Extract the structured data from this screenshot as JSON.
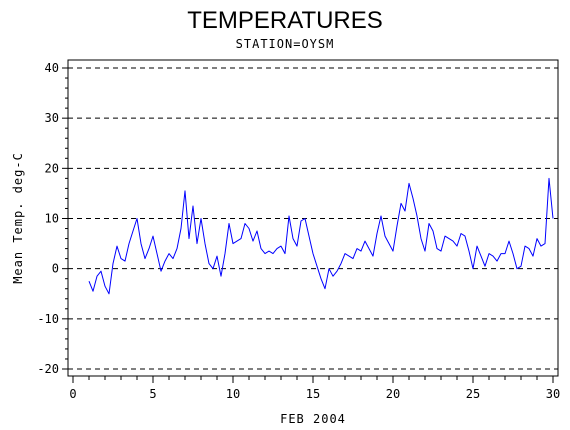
{
  "chart_data": {
    "type": "line",
    "title": "TEMPERATURES",
    "subtitle": "STATION=OYSM",
    "xlabel": "FEB 2004",
    "ylabel": "Mean Temp. deg-C",
    "xlim": [
      0,
      30
    ],
    "ylim": [
      -20,
      40
    ],
    "xticks": [
      "0",
      "5",
      "10",
      "15",
      "20",
      "25",
      "30"
    ],
    "yticks": [
      "-20",
      "-10",
      "0",
      "10",
      "20",
      "30",
      "40"
    ],
    "grid": "horizontal dashed",
    "line_color": "#0000ff",
    "series": [
      {
        "x": [
          1.0,
          1.25,
          1.5,
          1.75,
          2.0,
          2.25,
          2.5,
          2.75,
          3.0,
          3.25,
          3.5,
          3.75,
          4.0,
          4.25,
          4.5,
          4.75,
          5.0,
          5.25,
          5.5,
          5.75,
          6.0,
          6.25,
          6.5,
          6.75,
          7.0,
          7.25,
          7.5,
          7.75,
          8.0,
          8.25,
          8.5,
          8.75,
          9.0,
          9.25,
          9.5,
          9.75,
          10.0,
          10.25,
          10.5,
          10.75,
          11.0,
          11.25,
          11.5,
          11.75,
          12.0,
          12.25,
          12.5,
          12.75,
          13.0,
          13.25,
          13.5,
          13.75,
          14.0,
          14.25,
          14.5,
          14.75,
          15.0,
          15.25,
          15.5,
          15.75,
          16.0,
          16.25,
          16.5,
          16.75,
          17.0,
          17.25,
          17.5,
          17.75,
          18.0,
          18.25,
          18.5,
          18.75,
          19.0,
          19.25,
          19.5,
          19.75,
          20.0,
          20.25,
          20.5,
          20.75,
          21.0,
          21.25,
          21.5,
          21.75,
          22.0,
          22.25,
          22.5,
          22.75,
          23.0,
          23.25,
          23.5,
          23.75,
          24.0,
          24.25,
          24.5,
          24.75,
          25.0,
          25.25,
          25.5,
          25.75,
          26.0,
          26.25,
          26.5,
          26.75,
          27.0,
          27.25,
          27.5,
          27.75,
          28.0,
          28.25,
          28.5,
          28.75,
          29.0,
          29.25,
          29.5,
          29.75,
          30.0
        ],
        "y": [
          -2.5,
          -4.5,
          -1.5,
          -0.5,
          -3.5,
          -5.0,
          1.0,
          4.5,
          2.0,
          1.5,
          5.0,
          7.5,
          10.0,
          5.0,
          2.0,
          4.0,
          6.5,
          3.0,
          -0.5,
          1.5,
          3.0,
          2.0,
          4.0,
          8.0,
          15.5,
          6.0,
          12.5,
          5.0,
          10.0,
          5.0,
          1.0,
          0.0,
          2.5,
          -1.5,
          3.0,
          9.0,
          5.0,
          5.5,
          6.0,
          9.0,
          8.0,
          5.5,
          7.5,
          4.0,
          3.0,
          3.5,
          3.0,
          4.0,
          4.5,
          3.0,
          10.5,
          6.0,
          4.5,
          9.5,
          10.0,
          6.5,
          3.0,
          0.5,
          -2.0,
          -4.0,
          0.0,
          -1.5,
          -0.5,
          1.0,
          3.0,
          2.5,
          2.0,
          4.0,
          3.5,
          5.5,
          4.0,
          2.5,
          7.0,
          10.5,
          6.5,
          5.0,
          3.5,
          8.5,
          13.0,
          11.5,
          17.0,
          14.0,
          10.5,
          6.0,
          3.5,
          9.0,
          7.5,
          4.0,
          3.5,
          6.5,
          6.0,
          5.5,
          4.5,
          7.0,
          6.5,
          3.5,
          0.0,
          4.5,
          2.5,
          0.5,
          3.0,
          2.5,
          1.5,
          3.0,
          3.0,
          5.5,
          3.0,
          0.0,
          0.5,
          4.5,
          4.0,
          2.5,
          6.0,
          4.5,
          5.0,
          18.0,
          10.0
        ]
      }
    ]
  }
}
